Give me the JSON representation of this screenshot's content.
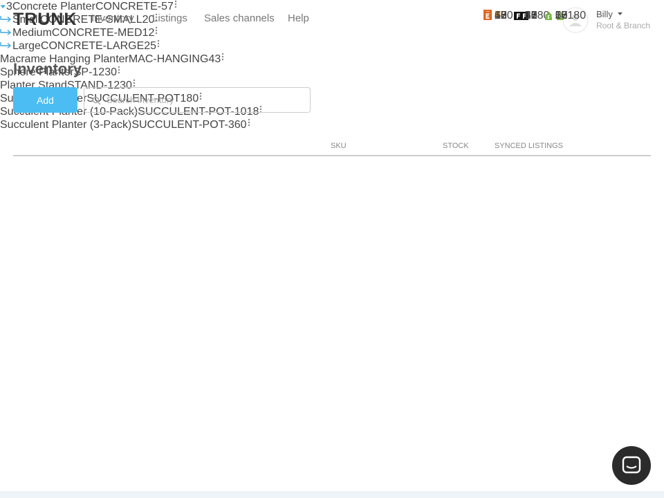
{
  "nav": {
    "logo": "TRUNK",
    "links": [
      "Inventory",
      "Listings",
      "Sales channels",
      "Help"
    ]
  },
  "user": {
    "name": "Billy",
    "store": "Root & Branch"
  },
  "page": {
    "title": "Inventory",
    "add_button": "Add",
    "search_placeholder": "Search inventory"
  },
  "table": {
    "headers": {
      "sku": "SKU",
      "stock": "STOCK",
      "listings": "SYNCED LISTINGS"
    },
    "rows": [
      {
        "variants": 3,
        "name": "Concrete Planter",
        "sku": "CONCRETE-",
        "stock": 57,
        "listings": {
          "etsy": 57,
          "facebook": 57,
          "shopify": 57
        }
      },
      {
        "child": true,
        "name": "Small",
        "sku": "CONCRETE-SMALL",
        "stock": 20,
        "listings": {
          "etsy": 20,
          "facebook": 20,
          "shopify": 20
        }
      },
      {
        "child": true,
        "name": "Medium",
        "sku": "CONCRETE-MED",
        "stock": 12,
        "listings": {
          "etsy": 12,
          "facebook": 12,
          "shopify": 12
        }
      },
      {
        "child": true,
        "name": "Large",
        "sku": "CONCRETE-LARGE",
        "stock": 25,
        "listings": {
          "etsy": 25,
          "facebook": 25,
          "shopify": 25
        }
      },
      {
        "name": "Macrame Hanging Planter",
        "sku": "MAC-HANGING",
        "stock": 43,
        "listings": {
          "etsy": 43,
          "shopify": 43
        }
      },
      {
        "name": "Sphere Planter",
        "sku": "SP-123",
        "stock": 0,
        "listings": {
          "etsy": null
        }
      },
      {
        "name": "Planter Stand",
        "sku": "STAND-123",
        "stock": 0,
        "listings": {
          "shopify": 0
        }
      },
      {
        "name": "Succulent Planter",
        "sku": "SUCCULENT-POT",
        "stock": 180,
        "listings": {
          "etsy": 180,
          "facebook": 180,
          "shopify": 180
        }
      },
      {
        "name": "Succulent Planter (10-Pack)",
        "sku": "SUCCULENT-POT-10",
        "stock": 18,
        "listings": {
          "etsy": 18,
          "facebook": 18,
          "shopify": 18
        }
      },
      {
        "name": "Succulent Planter (3-Pack)",
        "sku": "SUCCULENT-POT-3",
        "stock": 60,
        "listings": {
          "etsy": 60,
          "facebook": 60,
          "shopify": 60
        }
      }
    ]
  }
}
